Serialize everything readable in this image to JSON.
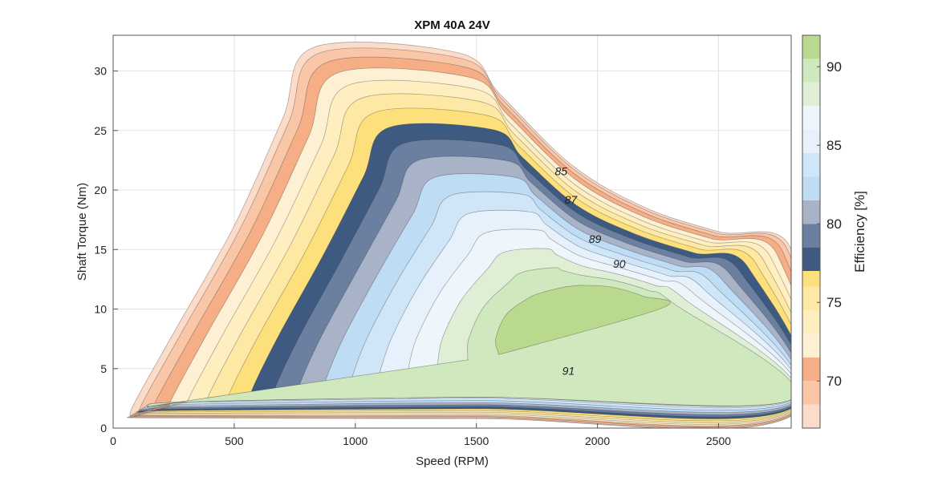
{
  "chart_data": {
    "type": "contourf",
    "title": "XPM 40A 24V",
    "xlabel": "Speed (RPM)",
    "ylabel": "Shaft Torque (Nm)",
    "xlim": [
      0,
      2800
    ],
    "ylim": [
      0,
      33
    ],
    "xticks": [
      0,
      500,
      1000,
      1500,
      2000,
      2500
    ],
    "yticks": [
      0,
      5,
      10,
      15,
      20,
      25,
      30
    ],
    "grid": true,
    "colorbar": {
      "label": "Efficiency [%]",
      "range": [
        67,
        92
      ],
      "ticks": [
        70,
        75,
        80,
        85,
        90
      ],
      "bands": [
        {
          "from": 67,
          "to": 68.5,
          "color": "#fcdcc8"
        },
        {
          "from": 68.5,
          "to": 70,
          "color": "#f9c6a8"
        },
        {
          "from": 70,
          "to": 71.5,
          "color": "#f6ae86"
        },
        {
          "from": 71.5,
          "to": 73,
          "color": "#fdf0d3"
        },
        {
          "from": 73,
          "to": 74.5,
          "color": "#feeec0"
        },
        {
          "from": 74.5,
          "to": 76,
          "color": "#fde9a4"
        },
        {
          "from": 76,
          "to": 77,
          "color": "#fde07c"
        },
        {
          "from": 77,
          "to": 78.5,
          "color": "#3e5a80"
        },
        {
          "from": 78.5,
          "to": 80,
          "color": "#6b7fa0"
        },
        {
          "from": 80,
          "to": 81.5,
          "color": "#a9b3c8"
        },
        {
          "from": 81.5,
          "to": 83,
          "color": "#bedcf4"
        },
        {
          "from": 83,
          "to": 84.5,
          "color": "#cfe5f8"
        },
        {
          "from": 84.5,
          "to": 86,
          "color": "#e6f1fb"
        },
        {
          "from": 86,
          "to": 87.5,
          "color": "#eef5fb"
        },
        {
          "from": 87.5,
          "to": 89,
          "color": "#deefd6"
        },
        {
          "from": 89,
          "to": 90.5,
          "color": "#d0e8bd"
        },
        {
          "from": 90.5,
          "to": 92,
          "color": "#b9da8e"
        }
      ]
    },
    "contour_labels": [
      {
        "text": "85",
        "x": 1850,
        "y": 21.6
      },
      {
        "text": "87",
        "x": 1890,
        "y": 19.2
      },
      {
        "text": "89",
        "x": 1990,
        "y": 15.9
      },
      {
        "text": "90",
        "x": 2090,
        "y": 13.8
      },
      {
        "text": "91",
        "x": 1880,
        "y": 4.8
      }
    ],
    "torque_envelope": [
      {
        "x": 75,
        "y": 0.9
      },
      {
        "x": 85,
        "y": 2
      },
      {
        "x": 250,
        "y": 8
      },
      {
        "x": 500,
        "y": 17
      },
      {
        "x": 700,
        "y": 26
      },
      {
        "x": 830,
        "y": 32
      },
      {
        "x": 1430,
        "y": 31.5
      },
      {
        "x": 1600,
        "y": 28
      },
      {
        "x": 1900,
        "y": 22
      },
      {
        "x": 2200,
        "y": 18.5
      },
      {
        "x": 2500,
        "y": 16.5
      },
      {
        "x": 2800,
        "y": 15
      }
    ]
  }
}
